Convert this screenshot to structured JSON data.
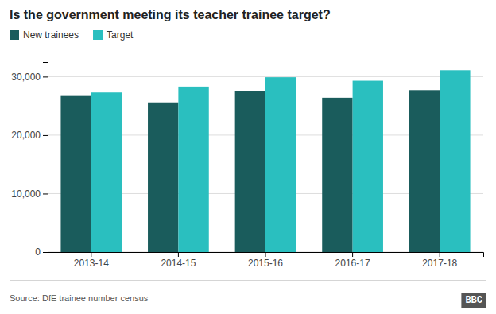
{
  "chart_data": {
    "type": "bar",
    "title": "Is the government meeting its teacher trainee target?",
    "categories": [
      "2013-14",
      "2014-15",
      "2015-16",
      "2016-17",
      "2017-18"
    ],
    "series": [
      {
        "name": "New trainees",
        "color": "#1a5c5c",
        "values": [
          26700,
          25600,
          27500,
          26400,
          27700
        ]
      },
      {
        "name": "Target",
        "color": "#2abfbf",
        "values": [
          27300,
          28300,
          29900,
          29300,
          31100
        ]
      }
    ],
    "ylim": [
      0,
      32500
    ],
    "yticks": [
      0,
      {
        "value": 10000,
        "label": "10,000"
      },
      {
        "value": 20000,
        "label": "20,000"
      },
      {
        "value": 30000,
        "label": "30,000"
      }
    ],
    "grid": true,
    "legend": "top-left",
    "annotations": [
      "Source: DfE trainee number census",
      "BBC"
    ]
  }
}
